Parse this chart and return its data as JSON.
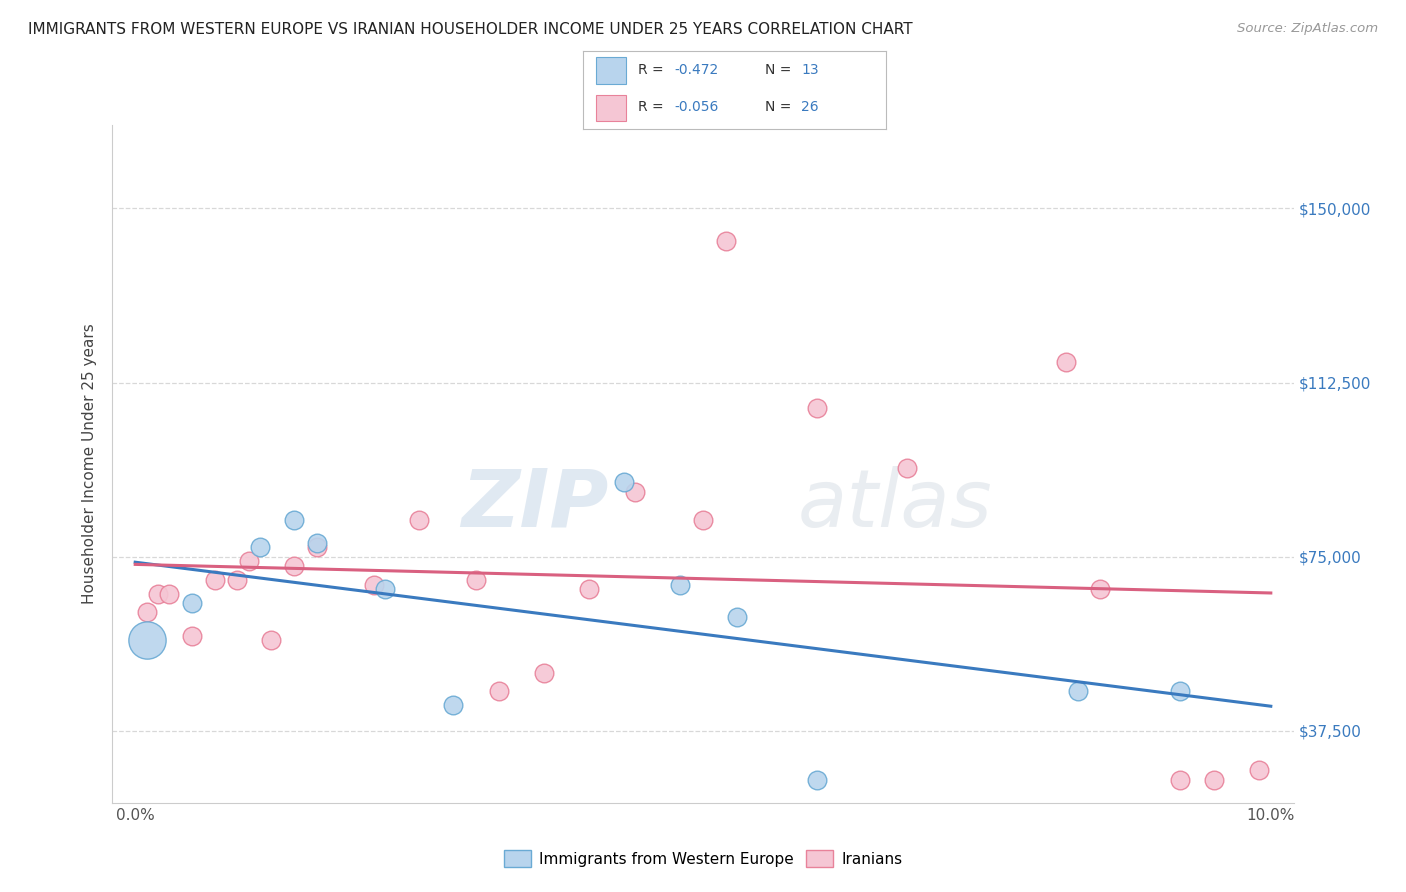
{
  "title": "IMMIGRANTS FROM WESTERN EUROPE VS IRANIAN HOUSEHOLDER INCOME UNDER 25 YEARS CORRELATION CHART",
  "source": "Source: ZipAtlas.com",
  "ylabel": "Householder Income Under 25 years",
  "yticks": [
    37500,
    75000,
    112500,
    150000
  ],
  "ytick_labels": [
    "$37,500",
    "$75,000",
    "$112,500",
    "$150,000"
  ],
  "xlim": [
    -0.002,
    0.102
  ],
  "ylim": [
    22000,
    168000
  ],
  "legend_r_blue": "-0.472",
  "legend_n_blue": "13",
  "legend_r_pink": "-0.056",
  "legend_n_pink": "26",
  "legend_label_blue": "Immigrants from Western Europe",
  "legend_label_pink": "Iranians",
  "blue_fill": "#b8d4ed",
  "pink_fill": "#f5c6d4",
  "blue_edge": "#6aaad4",
  "pink_edge": "#e8829a",
  "line_blue": "#3a7abf",
  "line_pink": "#d96080",
  "blue_points_x": [
    0.001,
    0.005,
    0.011,
    0.014,
    0.016,
    0.022,
    0.028,
    0.043,
    0.048,
    0.053,
    0.06,
    0.083,
    0.092
  ],
  "blue_points_y": [
    57000,
    65000,
    77000,
    83000,
    78000,
    68000,
    43000,
    91000,
    69000,
    62000,
    27000,
    46000,
    46000
  ],
  "blue_point_sizes": [
    400,
    100,
    100,
    100,
    100,
    100,
    100,
    100,
    100,
    100,
    100,
    100,
    100
  ],
  "pink_points_x": [
    0.001,
    0.002,
    0.003,
    0.005,
    0.007,
    0.009,
    0.01,
    0.012,
    0.014,
    0.016,
    0.021,
    0.025,
    0.03,
    0.032,
    0.036,
    0.04,
    0.044,
    0.05,
    0.052,
    0.06,
    0.068,
    0.082,
    0.085,
    0.092,
    0.095,
    0.099
  ],
  "pink_points_y": [
    63000,
    67000,
    67000,
    58000,
    70000,
    70000,
    74000,
    57000,
    73000,
    77000,
    69000,
    83000,
    70000,
    46000,
    50000,
    68000,
    89000,
    83000,
    143000,
    107000,
    94000,
    117000,
    68000,
    27000,
    27000,
    29000
  ],
  "pink_point_sizes": [
    100,
    100,
    100,
    100,
    100,
    100,
    100,
    100,
    100,
    100,
    100,
    100,
    100,
    100,
    100,
    100,
    100,
    100,
    100,
    100,
    100,
    100,
    100,
    100,
    100,
    100
  ],
  "watermark_zip": "ZIP",
  "watermark_atlas": "atlas",
  "background_color": "#ffffff",
  "grid_color": "#d8d8d8",
  "title_color": "#222222",
  "source_color": "#999999",
  "axis_label_color": "#444444",
  "tick_label_color_blue": "#3a7abf",
  "tick_label_color_x": "#555555"
}
